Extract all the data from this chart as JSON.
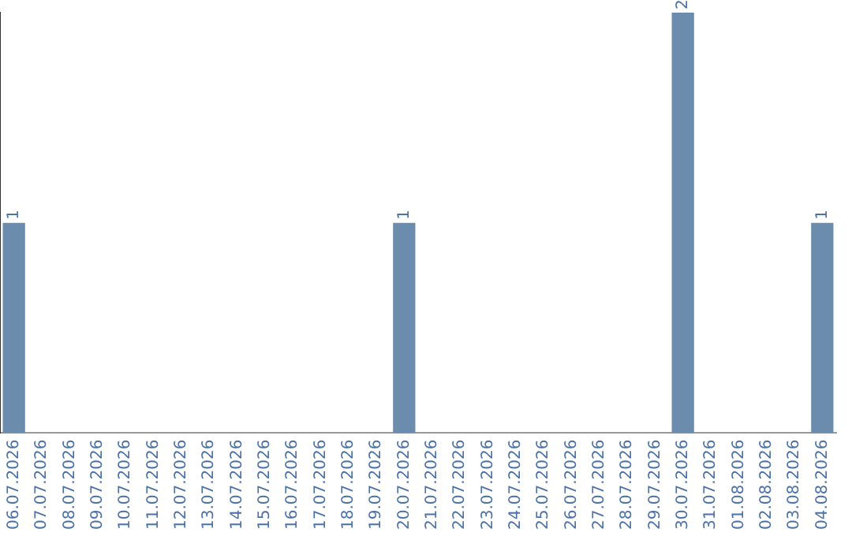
{
  "chart_data": {
    "type": "bar",
    "categories": [
      "06.07.2026",
      "07.07.2026",
      "08.07.2026",
      "09.07.2026",
      "10.07.2026",
      "11.07.2026",
      "12.07.2026",
      "13.07.2026",
      "14.07.2026",
      "15.07.2026",
      "16.07.2026",
      "17.07.2026",
      "18.07.2026",
      "19.07.2026",
      "20.07.2026",
      "21.07.2026",
      "22.07.2026",
      "23.07.2026",
      "24.07.2026",
      "25.07.2026",
      "26.07.2026",
      "27.07.2026",
      "28.07.2026",
      "29.07.2026",
      "30.07.2026",
      "31.07.2026",
      "01.08.2026",
      "02.08.2026",
      "03.08.2026",
      "04.08.2026"
    ],
    "values": [
      1,
      0,
      0,
      0,
      0,
      0,
      0,
      0,
      0,
      0,
      0,
      0,
      0,
      0,
      1,
      0,
      0,
      0,
      0,
      0,
      0,
      0,
      0,
      0,
      2,
      0,
      0,
      0,
      0,
      1
    ],
    "value_labels": [
      "1",
      null,
      null,
      null,
      null,
      null,
      null,
      null,
      null,
      null,
      null,
      null,
      null,
      null,
      "1",
      null,
      null,
      null,
      null,
      null,
      null,
      null,
      null,
      null,
      "2",
      null,
      null,
      null,
      null,
      "1"
    ],
    "color": "#6b8cad",
    "tick_labels": "x",
    "grid": false,
    "legend": false
  }
}
